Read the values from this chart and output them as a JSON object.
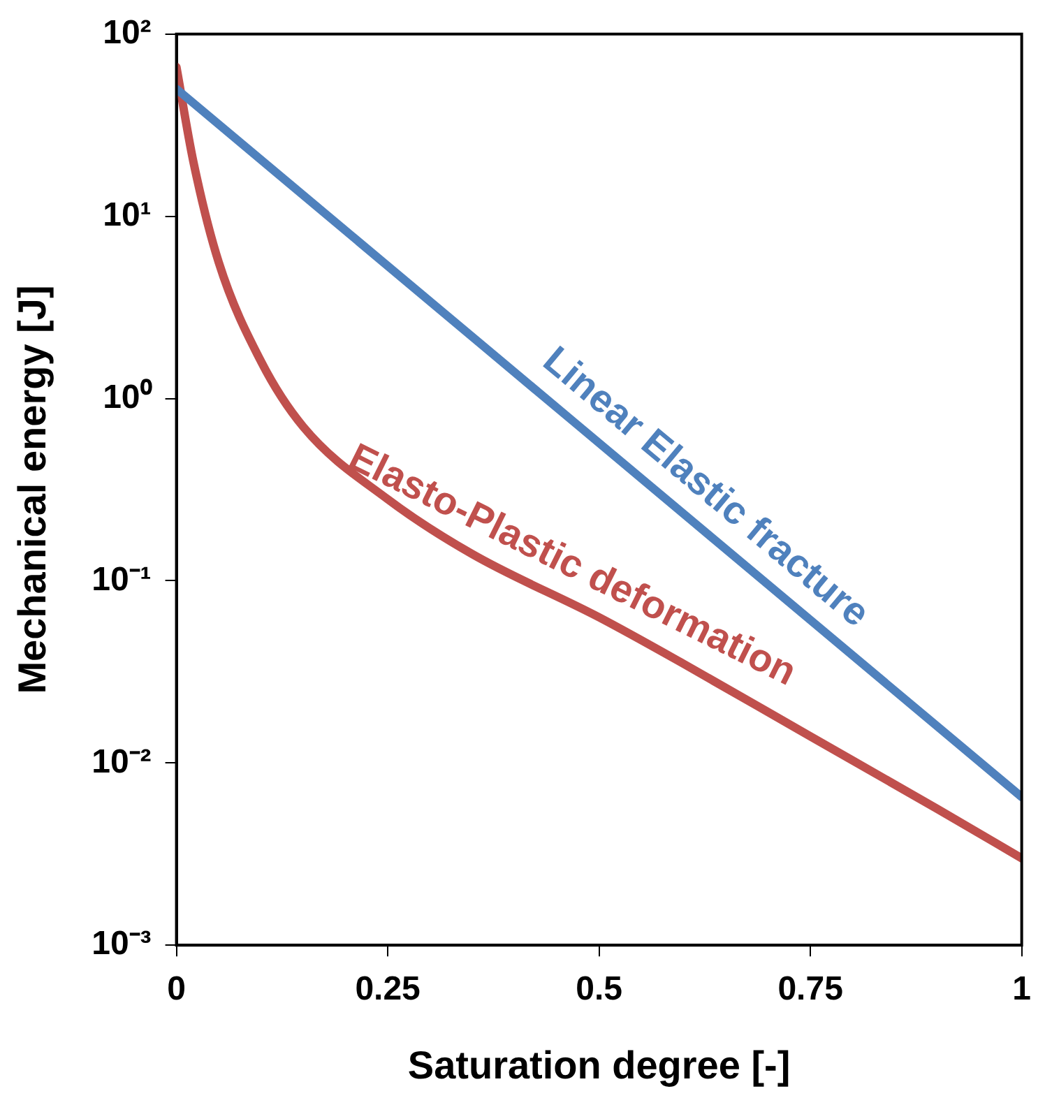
{
  "chart_data": {
    "type": "line",
    "xlabel": "Saturation degree [-]",
    "ylabel": "Mechanical energy [J]",
    "log": "y",
    "grid": false,
    "legend": false,
    "marker": "none",
    "line_style": "solid",
    "xlim": [
      0,
      1
    ],
    "xticks": [
      0,
      0.25,
      0.5,
      0.75,
      1
    ],
    "ylim": [
      0.001,
      100
    ],
    "yticks": [
      {
        "value": 100,
        "label": "10²"
      },
      {
        "value": 10,
        "label": "10¹"
      },
      {
        "value": 1,
        "label": "10⁰"
      },
      {
        "value": 0.1,
        "label": "10⁻¹"
      },
      {
        "value": 0.01,
        "label": "10⁻²"
      },
      {
        "value": 0.001,
        "label": "10⁻³"
      }
    ],
    "series": [
      {
        "name": "Linear Elastic fracture",
        "color": "#4f81bd",
        "x": [
          0,
          1
        ],
        "values": [
          50,
          0.0065
        ]
      },
      {
        "name": "Elasto-Plastic deformation",
        "color": "#c0504d",
        "x": [
          0,
          0.02,
          0.05,
          0.1,
          0.15,
          0.25,
          0.35,
          0.5,
          0.6,
          0.75,
          0.9,
          1
        ],
        "values": [
          66,
          20,
          5.6,
          1.6,
          0.7,
          0.28,
          0.14,
          0.063,
          0.035,
          0.014,
          0.0056,
          0.003
        ]
      }
    ]
  }
}
